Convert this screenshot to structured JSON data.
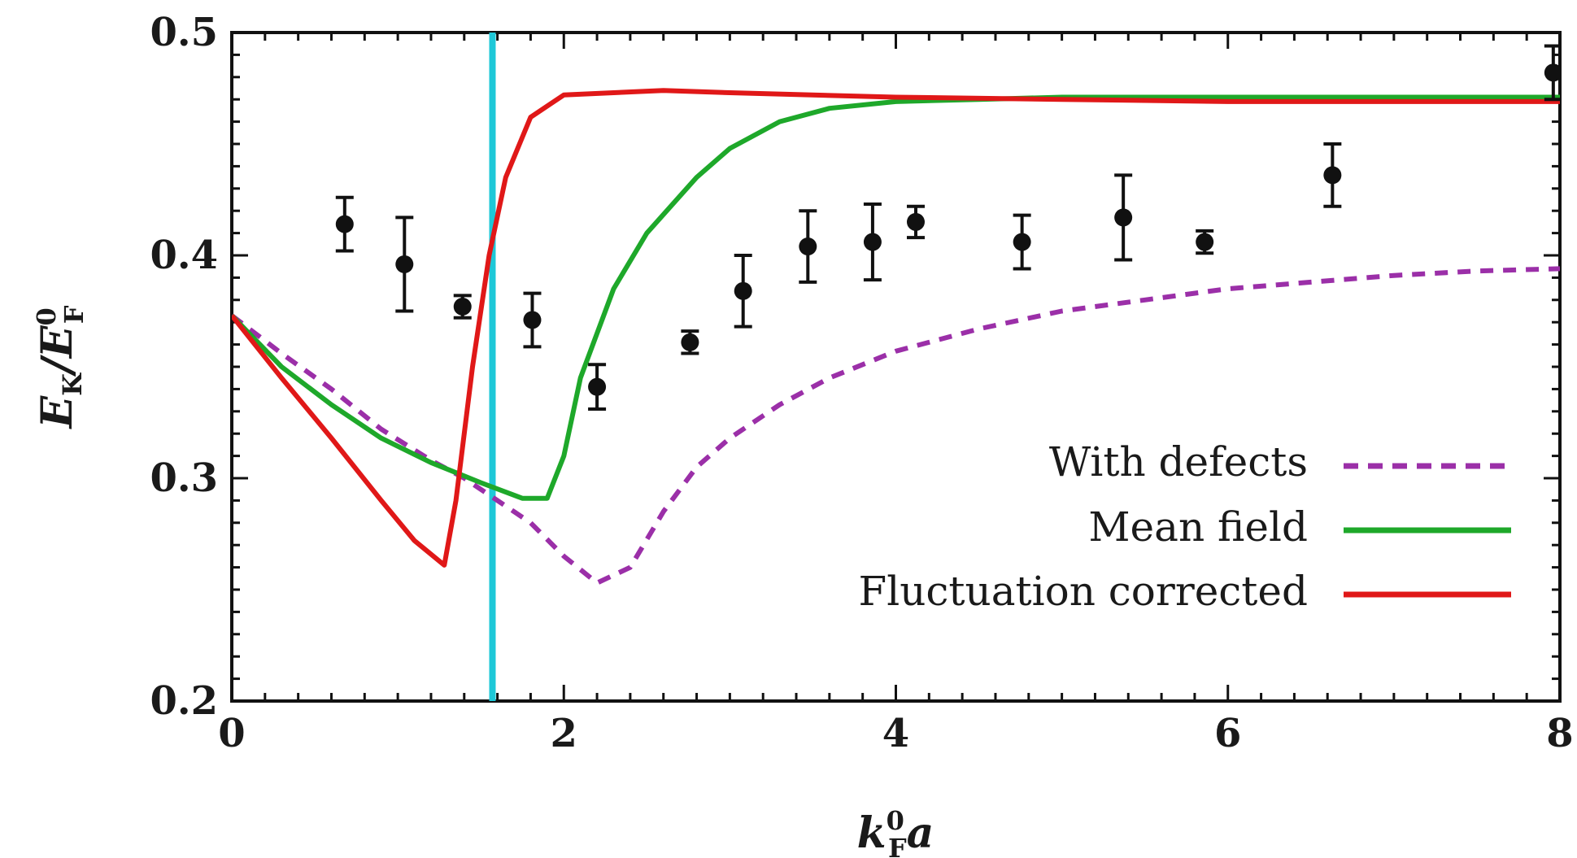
{
  "chart_data": {
    "type": "line",
    "title": "",
    "xlabel": {
      "main": "k",
      "sup": "0",
      "sub": "F",
      "tail": "a"
    },
    "ylabel": {
      "a": "E",
      "a_sub": "K",
      "slash": "/",
      "b": "E",
      "b_sup": "0",
      "b_sub": "F"
    },
    "xlim": [
      0,
      8
    ],
    "ylim": [
      0.2,
      0.5
    ],
    "xticks": [
      0,
      2,
      4,
      6,
      8
    ],
    "xtick_labels": [
      "0",
      "2",
      "4",
      "6",
      "8"
    ],
    "yticks": [
      0.2,
      0.3,
      0.4,
      0.5
    ],
    "ytick_labels": [
      "0.2",
      "0.3",
      "0.4",
      "0.5"
    ],
    "grid": false,
    "legend_position": "bottom-right",
    "vertical_line": {
      "x": 1.57,
      "color": "#1ec8d8"
    },
    "series": [
      {
        "name": "With defects",
        "style": "dashed",
        "color": "#9b2fa8",
        "x": [
          0,
          0.3,
          0.6,
          0.9,
          1.2,
          1.4,
          1.6,
          1.8,
          2.0,
          2.2,
          2.4,
          2.6,
          2.8,
          3.0,
          3.3,
          3.6,
          4.0,
          4.5,
          5.0,
          5.5,
          6.0,
          6.5,
          7.0,
          7.5,
          8.0
        ],
        "y": [
          0.373,
          0.356,
          0.34,
          0.322,
          0.308,
          0.3,
          0.29,
          0.28,
          0.265,
          0.253,
          0.26,
          0.285,
          0.305,
          0.318,
          0.333,
          0.345,
          0.357,
          0.367,
          0.375,
          0.38,
          0.385,
          0.388,
          0.391,
          0.393,
          0.394
        ]
      },
      {
        "name": "Mean field",
        "style": "solid",
        "color": "#1ea82a",
        "x": [
          0,
          0.3,
          0.6,
          0.9,
          1.2,
          1.5,
          1.75,
          1.9,
          2.0,
          2.1,
          2.3,
          2.5,
          2.8,
          3.0,
          3.3,
          3.6,
          4.0,
          4.5,
          5.0,
          6.0,
          7.0,
          8.0
        ],
        "y": [
          0.373,
          0.35,
          0.333,
          0.318,
          0.307,
          0.298,
          0.291,
          0.291,
          0.31,
          0.345,
          0.385,
          0.41,
          0.435,
          0.448,
          0.46,
          0.466,
          0.469,
          0.47,
          0.471,
          0.471,
          0.471,
          0.471
        ]
      },
      {
        "name": "Fluctuation corrected",
        "style": "solid",
        "color": "#e01818",
        "x": [
          0,
          0.3,
          0.6,
          0.9,
          1.1,
          1.28,
          1.35,
          1.45,
          1.55,
          1.65,
          1.8,
          2.0,
          2.3,
          2.6,
          3.0,
          4.0,
          5.0,
          6.0,
          7.0,
          8.0
        ],
        "y": [
          0.373,
          0.345,
          0.318,
          0.29,
          0.272,
          0.261,
          0.29,
          0.35,
          0.4,
          0.435,
          0.462,
          0.472,
          0.473,
          0.474,
          0.473,
          0.471,
          0.47,
          0.469,
          0.469,
          0.469
        ]
      },
      {
        "name": "",
        "style": "points",
        "color": "#111111",
        "x": [
          0.68,
          1.04,
          1.39,
          1.81,
          2.2,
          2.76,
          3.08,
          3.47,
          3.86,
          4.12,
          4.76,
          5.37,
          5.86,
          6.63,
          7.96
        ],
        "y": [
          0.414,
          0.396,
          0.377,
          0.371,
          0.341,
          0.361,
          0.384,
          0.404,
          0.406,
          0.415,
          0.406,
          0.417,
          0.406,
          0.436,
          0.482
        ],
        "err": [
          0.012,
          0.021,
          0.005,
          0.012,
          0.01,
          0.005,
          0.016,
          0.016,
          0.017,
          0.007,
          0.012,
          0.019,
          0.005,
          0.014,
          0.012
        ]
      }
    ]
  }
}
